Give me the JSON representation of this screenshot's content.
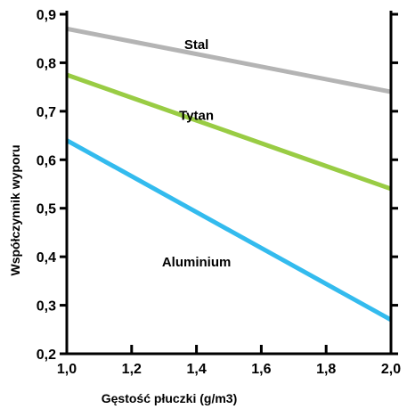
{
  "chart_data": {
    "type": "line",
    "title": "",
    "xlabel": "Gęstość płuczki (g/m3)",
    "ylabel": "Współczynnik wyporu",
    "xlim": [
      1.0,
      2.0
    ],
    "ylim": [
      0.2,
      0.9
    ],
    "x_ticks": [
      1.0,
      1.2,
      1.4,
      1.6,
      1.8,
      2.0
    ],
    "x_tick_labels": [
      "1,0",
      "1,2",
      "1,4",
      "1,6",
      "1,8",
      "2,0"
    ],
    "y_ticks": [
      0.2,
      0.3,
      0.4,
      0.5,
      0.6,
      0.7,
      0.8,
      0.9
    ],
    "y_tick_labels": [
      "0,2",
      "0,3",
      "0,4",
      "0,5",
      "0,6",
      "0,7",
      "0,8",
      "0,9"
    ],
    "grid": false,
    "series": [
      {
        "name": "Stal",
        "color": "#b4b4b4",
        "x": [
          1.0,
          2.0
        ],
        "y": [
          0.87,
          0.74
        ]
      },
      {
        "name": "Tytan",
        "color": "#99cc44",
        "x": [
          1.0,
          2.0
        ],
        "y": [
          0.775,
          0.54
        ]
      },
      {
        "name": "Aluminium",
        "color": "#33bbee",
        "x": [
          1.0,
          2.0
        ],
        "y": [
          0.64,
          0.27
        ]
      }
    ]
  }
}
